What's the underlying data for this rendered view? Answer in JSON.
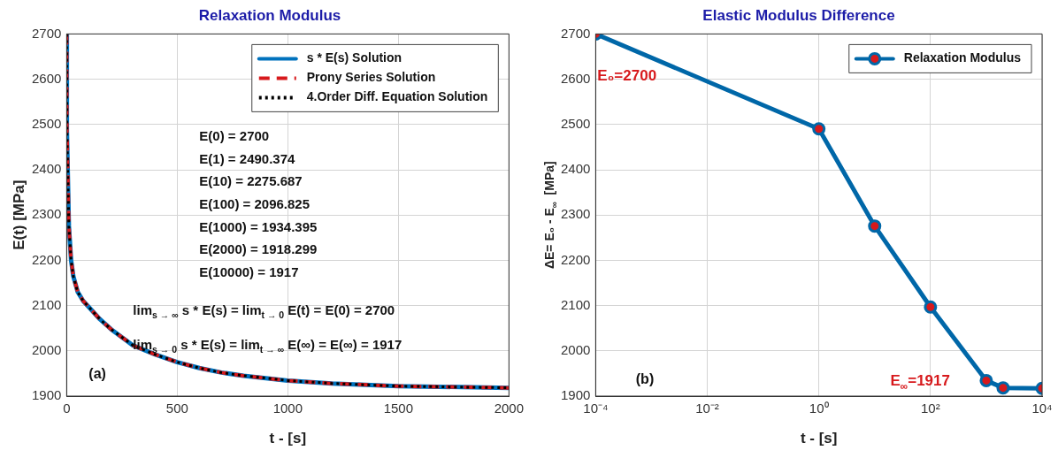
{
  "chart_data": [
    {
      "type": "line",
      "title": "Relaxation Modulus",
      "xlabel": "t - [s]",
      "ylabel": "E(t) [MPa]",
      "x": [
        0,
        1,
        10,
        20,
        30,
        50,
        75,
        100,
        150,
        200,
        300,
        400,
        500,
        600,
        700,
        800,
        1000,
        1200,
        1500,
        2000
      ],
      "series": [
        {
          "name": "s * E(s) Solution",
          "color": "#0072bd",
          "line_style": "solid",
          "values": [
            2700,
            2490.374,
            2275.687,
            2200,
            2165,
            2130,
            2110,
            2096.825,
            2070,
            2048,
            2012,
            1992,
            1975,
            1962,
            1952,
            1945,
            1934.395,
            1928,
            1922,
            1918.299
          ]
        },
        {
          "name": "Prony Series Solution",
          "color": "#d7191c",
          "line_style": "dashed",
          "values": [
            2700,
            2490.374,
            2275.687,
            2200,
            2165,
            2130,
            2110,
            2096.825,
            2070,
            2048,
            2012,
            1992,
            1975,
            1962,
            1952,
            1945,
            1934.395,
            1928,
            1922,
            1918.299
          ]
        },
        {
          "name": "4.Order Diff. Equation Solution",
          "color": "#000000",
          "line_style": "dotted",
          "values": [
            2700,
            2490.374,
            2275.687,
            2200,
            2165,
            2130,
            2110,
            2096.825,
            2070,
            2048,
            2012,
            1992,
            1975,
            1962,
            1952,
            1945,
            1934.395,
            1928,
            1922,
            1918.299
          ]
        }
      ],
      "xlim": [
        0,
        2000
      ],
      "xticks": [
        0,
        500,
        1000,
        1500,
        2000
      ],
      "ylim": [
        1900,
        2700
      ],
      "yticks": [
        1900,
        2000,
        2100,
        2200,
        2300,
        2400,
        2500,
        2600,
        2700
      ],
      "grid": true,
      "legend": "top right",
      "marker": "none",
      "annotations": [
        "E(0) = 2700",
        "E(1) = 2490.374",
        "E(10) = 2275.687",
        "E(100) = 2096.825",
        "E(1000) = 1934.395",
        "E(2000) = 1918.299",
        "E(10000) = 1917",
        "lim$_{s → ∞}$ s * E(s) = lim$_{t → 0}$ E(t) = E(0) = 2700",
        "lim$_{s → 0}$ s * E(s) = lim$_{t → ∞}$ E(∞) = E(∞) = 1917",
        "(a)"
      ]
    },
    {
      "type": "line",
      "title": "Elastic Modulus Difference",
      "xlabel": "t - [s]",
      "ylabel": "ΔE= E₀ - E$_{∞}$  [MPa]",
      "x": [
        0.0001,
        1,
        10,
        100,
        1000,
        2000,
        10000
      ],
      "series": [
        {
          "name": "Relaxation Modulus",
          "color": "#0067a8",
          "values": [
            2700,
            2490.374,
            2275.687,
            2096.825,
            1934.395,
            1918.299,
            1917
          ]
        }
      ],
      "log": "x",
      "xlim": [
        0.0001,
        10000
      ],
      "xticks": [
        {
          "value": 0.0001,
          "label": "10⁻⁴"
        },
        {
          "value": 0.01,
          "label": "10⁻²"
        },
        {
          "value": 1,
          "label": "10⁰"
        },
        {
          "value": 100,
          "label": "10²"
        },
        {
          "value": 10000,
          "label": "10⁴"
        }
      ],
      "ylim": [
        1900,
        2700
      ],
      "yticks": [
        1900,
        2000,
        2100,
        2200,
        2300,
        2400,
        2500,
        2600,
        2700
      ],
      "grid": true,
      "legend": "top right",
      "marker": "circle",
      "line_style": "solid",
      "annotations": [
        {
          "text": "E₀=2700",
          "x": 0.0001,
          "y": 2700
        },
        "E$_{∞}$=1917",
        "(b)"
      ]
    }
  ]
}
